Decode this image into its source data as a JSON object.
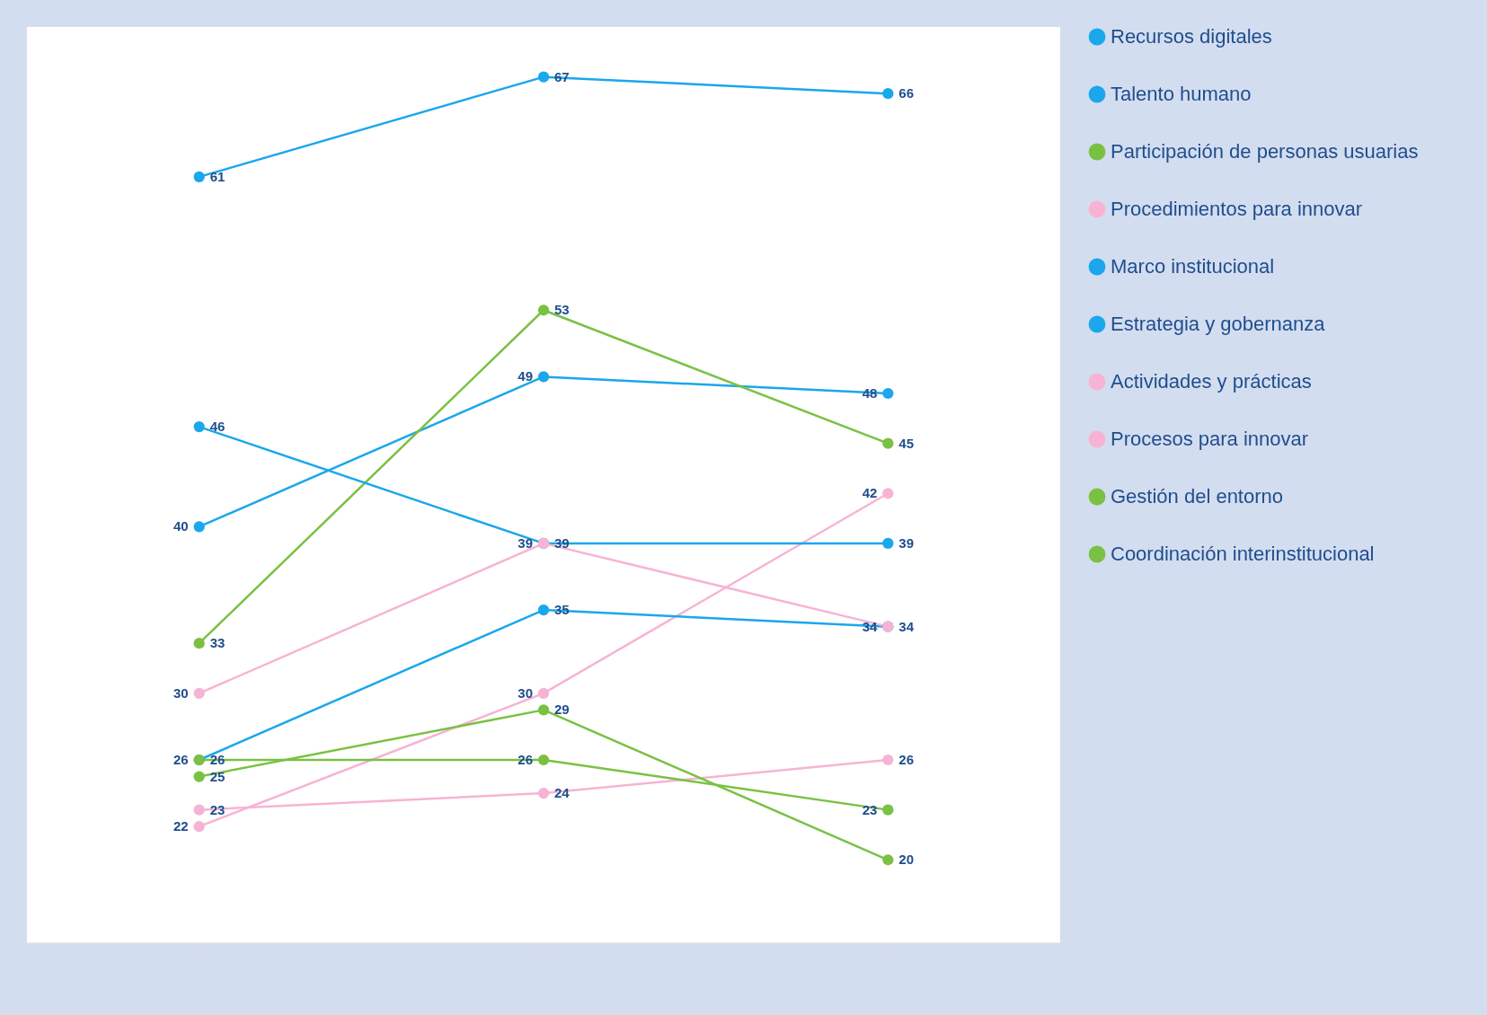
{
  "chart_data": {
    "type": "line",
    "categories": [
      null,
      null,
      null
    ],
    "ylim": [
      15,
      70
    ],
    "tick_labels": false,
    "data_labels": true,
    "legend": "right",
    "marker": "circle",
    "series": [
      {
        "name": "Recursos digitales",
        "color": "#1aa7ec",
        "values": [
          61,
          67,
          66
        ]
      },
      {
        "name": "Talento humano",
        "color": "#1aa7ec",
        "values": [
          40,
          49,
          48
        ]
      },
      {
        "name": "Participación de personas usuarias",
        "color": "#7ac143",
        "values": [
          33,
          53,
          45
        ]
      },
      {
        "name": "Procedimientos para innovar",
        "color": "#f7b3d4",
        "values": [
          22,
          30,
          42
        ]
      },
      {
        "name": "Marco institucional",
        "color": "#1aa7ec",
        "values": [
          46,
          39,
          39
        ]
      },
      {
        "name": "Estrategia y gobernanza",
        "color": "#1aa7ec",
        "values": [
          26,
          35,
          34
        ]
      },
      {
        "name": "Actividades y prácticas",
        "color": "#f7b3d4",
        "values": [
          30,
          39,
          34
        ]
      },
      {
        "name": "Procesos para innovar",
        "color": "#f7b3d4",
        "values": [
          23,
          24,
          26
        ]
      },
      {
        "name": "Gestión del entorno",
        "color": "#7ac143",
        "values": [
          26,
          26,
          23
        ]
      },
      {
        "name": "Coordinación interinstitucional",
        "color": "#7ac143",
        "values": [
          25,
          29,
          20
        ]
      }
    ]
  }
}
